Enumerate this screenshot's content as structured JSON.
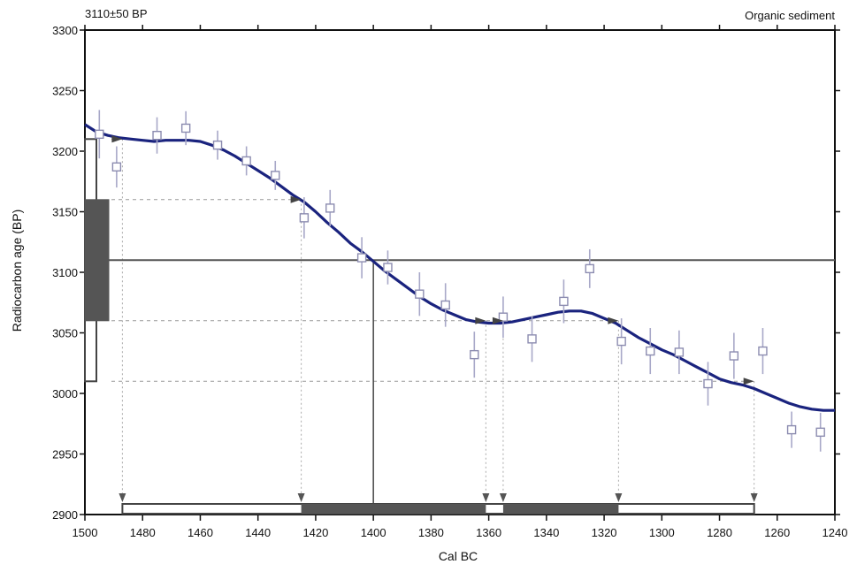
{
  "chart_data": {
    "type": "line",
    "title": "",
    "header_left": "3110±50 BP",
    "header_right": "Organic sediment",
    "xlabel": "Cal BC",
    "ylabel": "Radiocarbon age (BP)",
    "xlim": [
      1500,
      1240
    ],
    "ylim": [
      2900,
      3300
    ],
    "x_reversed": true,
    "x_ticks": [
      1500,
      1480,
      1460,
      1440,
      1420,
      1400,
      1380,
      1360,
      1340,
      1320,
      1300,
      1280,
      1260,
      1240
    ],
    "y_ticks": [
      2900,
      2950,
      3000,
      3050,
      3100,
      3150,
      3200,
      3250,
      3300
    ],
    "grid": false,
    "sample": {
      "age": 3110,
      "sigma": 50,
      "one_sigma": [
        3060,
        3160
      ],
      "two_sigma": [
        3010,
        3210
      ]
    },
    "calibration_curve": {
      "color": "#1a237e",
      "x": [
        1500,
        1496,
        1492,
        1488,
        1484,
        1480,
        1476,
        1472,
        1468,
        1464,
        1460,
        1456,
        1452,
        1448,
        1444,
        1440,
        1436,
        1432,
        1428,
        1424,
        1420,
        1416,
        1412,
        1408,
        1404,
        1400,
        1396,
        1392,
        1388,
        1384,
        1380,
        1376,
        1372,
        1368,
        1364,
        1360,
        1356,
        1352,
        1348,
        1344,
        1340,
        1336,
        1332,
        1328,
        1324,
        1320,
        1316,
        1312,
        1308,
        1304,
        1300,
        1296,
        1292,
        1288,
        1284,
        1280,
        1276,
        1272,
        1268,
        1264,
        1260,
        1256,
        1252,
        1248,
        1244,
        1240
      ],
      "y": [
        3222,
        3216,
        3213,
        3211,
        3210,
        3209,
        3208,
        3209,
        3209,
        3209,
        3208,
        3205,
        3201,
        3196,
        3190,
        3184,
        3178,
        3171,
        3164,
        3158,
        3150,
        3141,
        3133,
        3124,
        3117,
        3109,
        3101,
        3094,
        3087,
        3080,
        3074,
        3069,
        3065,
        3061,
        3059,
        3058,
        3058,
        3059,
        3061,
        3063,
        3065,
        3067,
        3068,
        3068,
        3066,
        3062,
        3058,
        3052,
        3046,
        3041,
        3036,
        3032,
        3027,
        3022,
        3017,
        3012,
        3009,
        3007,
        3004,
        3000,
        2996,
        2992,
        2989,
        2987,
        2986,
        2986
      ]
    },
    "data_points": [
      {
        "x": 1495,
        "y": 3214,
        "err": 20
      },
      {
        "x": 1489,
        "y": 3187,
        "err": 17
      },
      {
        "x": 1475,
        "y": 3213,
        "err": 15
      },
      {
        "x": 1465,
        "y": 3219,
        "err": 14
      },
      {
        "x": 1454,
        "y": 3205,
        "err": 12
      },
      {
        "x": 1444,
        "y": 3192,
        "err": 12
      },
      {
        "x": 1434,
        "y": 3180,
        "err": 12
      },
      {
        "x": 1424,
        "y": 3145,
        "err": 17
      },
      {
        "x": 1415,
        "y": 3153,
        "err": 15
      },
      {
        "x": 1404,
        "y": 3112,
        "err": 17
      },
      {
        "x": 1395,
        "y": 3104,
        "err": 14
      },
      {
        "x": 1384,
        "y": 3082,
        "err": 18
      },
      {
        "x": 1375,
        "y": 3073,
        "err": 18
      },
      {
        "x": 1365,
        "y": 3032,
        "err": 19
      },
      {
        "x": 1355,
        "y": 3063,
        "err": 17
      },
      {
        "x": 1345,
        "y": 3045,
        "err": 19
      },
      {
        "x": 1334,
        "y": 3076,
        "err": 18
      },
      {
        "x": 1325,
        "y": 3103,
        "err": 16
      },
      {
        "x": 1314,
        "y": 3043,
        "err": 19
      },
      {
        "x": 1304,
        "y": 3035,
        "err": 19
      },
      {
        "x": 1294,
        "y": 3034,
        "err": 18
      },
      {
        "x": 1284,
        "y": 3008,
        "err": 18
      },
      {
        "x": 1275,
        "y": 3031,
        "err": 19
      },
      {
        "x": 1265,
        "y": 3035,
        "err": 19
      },
      {
        "x": 1255,
        "y": 2970,
        "err": 15
      },
      {
        "x": 1245,
        "y": 2968,
        "err": 16
      }
    ],
    "intercept_x": 1400,
    "one_sigma_ranges": [
      [
        1425,
        1361
      ],
      [
        1355,
        1315
      ]
    ],
    "two_sigma_range": [
      1487,
      1268
    ],
    "sigma_arrows": [
      {
        "x": 1487,
        "y": 3210
      },
      {
        "x": 1425,
        "y": 3160
      },
      {
        "x": 1361,
        "y": 3060
      },
      {
        "x": 1355,
        "y": 3060
      },
      {
        "x": 1315,
        "y": 3060
      },
      {
        "x": 1268,
        "y": 3010
      }
    ],
    "drop_lines_x": [
      1487,
      1425,
      1361,
      1355,
      1315,
      1268
    ]
  }
}
